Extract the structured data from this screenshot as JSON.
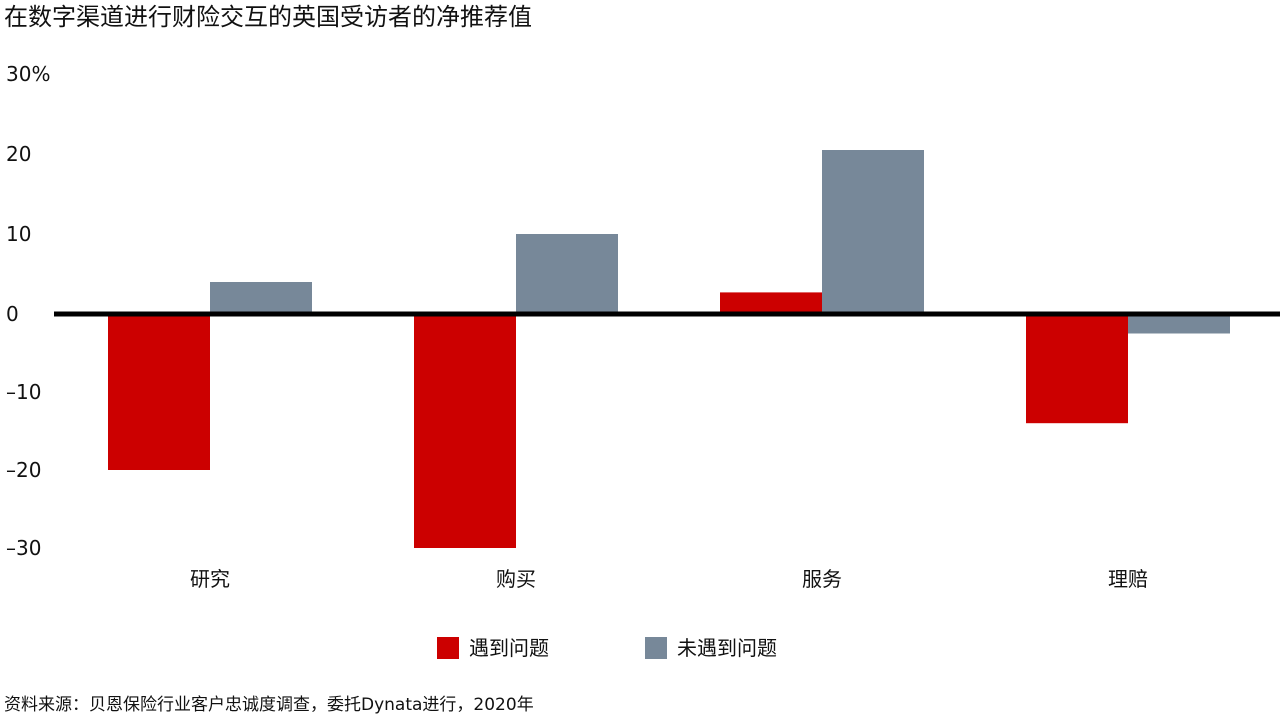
{
  "title": "在数字渠道进行财险交互的英国受访者的净推荐值",
  "source": "资料来源：贝恩保险行业客户忠诚度调查，委托Dynata进行，2020年",
  "colors": {
    "problem": "#cc0000",
    "no_problem": "#778899",
    "axis": "#000000",
    "text": "#111111"
  },
  "chart_data": {
    "type": "bar",
    "categories": [
      "研究",
      "购买",
      "服务",
      "理赔"
    ],
    "series": [
      {
        "name": "遇到问题",
        "values": [
          -20,
          -30,
          2.7,
          -14
        ]
      },
      {
        "name": "未遇到问题",
        "values": [
          4,
          10,
          20.5,
          -2.5
        ]
      }
    ],
    "ylim": [
      -30,
      30
    ],
    "yticks": [
      {
        "value": 30,
        "label": "30%"
      },
      {
        "value": 20,
        "label": "20"
      },
      {
        "value": 10,
        "label": "10"
      },
      {
        "value": 0,
        "label": "0"
      },
      {
        "value": -10,
        "label": "–10"
      },
      {
        "value": -20,
        "label": "–20"
      },
      {
        "value": -30,
        "label": "–30"
      }
    ],
    "grid": false,
    "legend": "bottom"
  }
}
